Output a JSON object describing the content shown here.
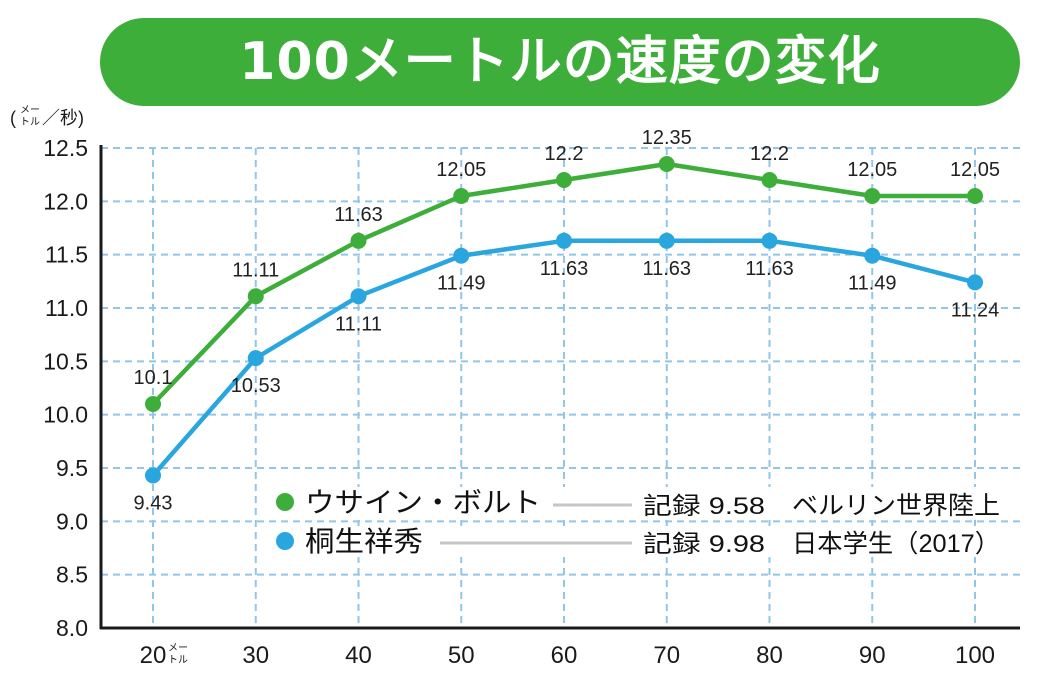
{
  "colors": {
    "banner": "#3dae3a",
    "grid": "#92c5ea",
    "axis": "#1a1a1a",
    "legend_line": "#c6c6c6"
  },
  "chart_data": {
    "type": "line",
    "title": "100メートルの速度の変化",
    "ylabel": {
      "prefix": "(",
      "unit_top": "メー",
      "unit_bottom": "トル",
      "suffix": "／秒)"
    },
    "xlabel_unit": {
      "top": "メー",
      "bottom": "トル"
    },
    "x": [
      20,
      30,
      40,
      50,
      60,
      70,
      80,
      90,
      100
    ],
    "ylim": [
      8.0,
      12.5
    ],
    "y_tick_labels": [
      "8.0",
      "8.5",
      "9.0",
      "9.5",
      "10.0",
      "10.5",
      "11.0",
      "11.5",
      "12.0",
      "12.5"
    ],
    "grid": true,
    "legend_position": "inside-bottom-center",
    "series": [
      {
        "name": "ウサイン・ボルト",
        "color": "#3dae3a",
        "values": [
          10.1,
          11.11,
          11.63,
          12.05,
          12.2,
          12.35,
          12.2,
          12.05,
          12.05
        ],
        "label_position": "above",
        "record": "記録 9.58",
        "event": "ベルリン世界陸上"
      },
      {
        "name": "桐生祥秀",
        "color": "#2aa6df",
        "values": [
          9.43,
          10.53,
          11.11,
          11.49,
          11.63,
          11.63,
          11.63,
          11.49,
          11.24
        ],
        "label_position": "below",
        "record": "記録 9.98",
        "event": "日本学生（2017）"
      }
    ]
  }
}
